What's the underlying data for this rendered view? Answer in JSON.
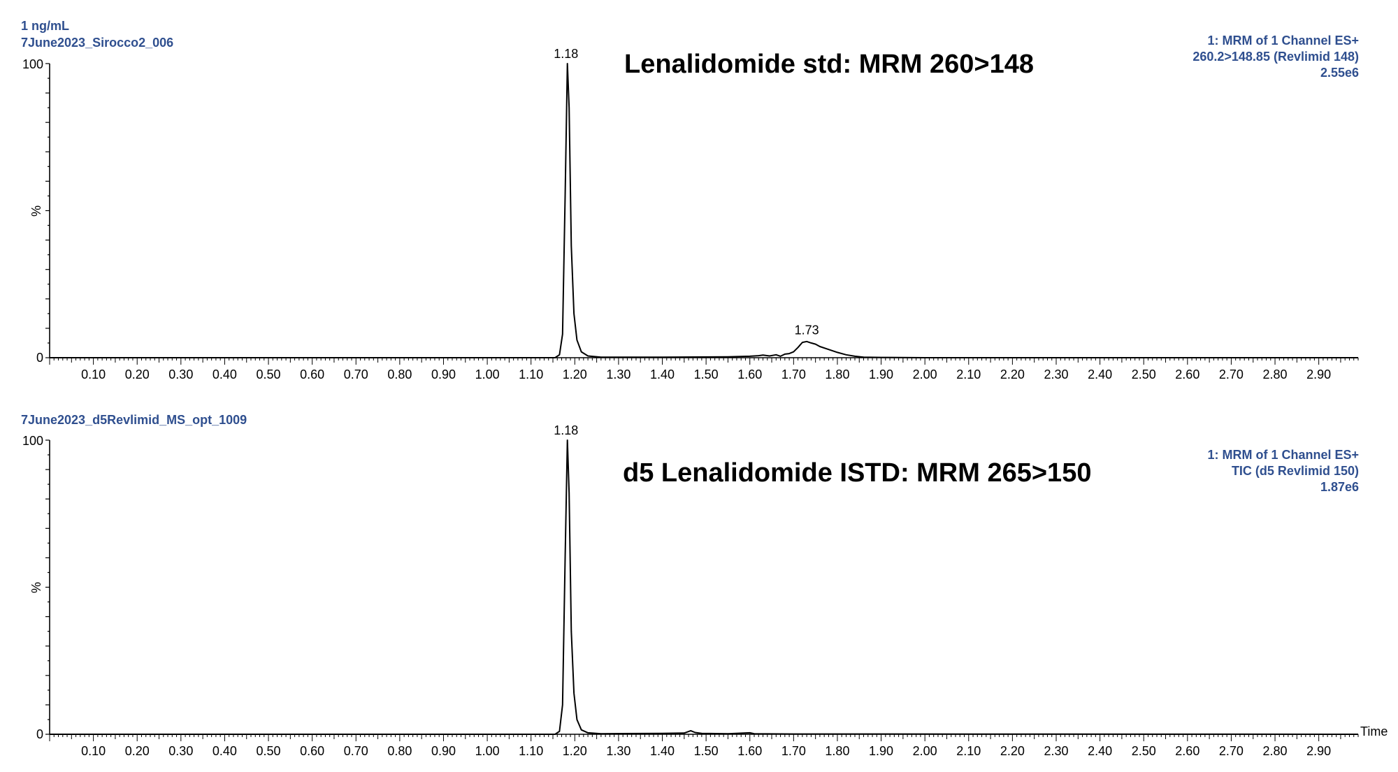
{
  "colors": {
    "header_text": "#2f4f8f",
    "trace": "#000000",
    "axis": "#000000",
    "background": "#ffffff"
  },
  "chart_data": [
    {
      "type": "line",
      "sample_name_lines": [
        "1 ng/mL",
        "7June2023_Sirocco2_006"
      ],
      "title": "Lenalidomide std: MRM 260>148",
      "info_lines": [
        "1: MRM of 1 Channel ES+",
        "260.2>148.85 (Revlimid 148)",
        "2.55e6"
      ],
      "ylabel": "%",
      "xlabel": "",
      "xlim": [
        0.0,
        2.99
      ],
      "ylim": [
        0,
        100
      ],
      "y_ticks": [
        "100",
        "0"
      ],
      "x_ticks": [
        "0.10",
        "0.20",
        "0.30",
        "0.40",
        "0.50",
        "0.60",
        "0.70",
        "0.80",
        "0.90",
        "1.00",
        "1.10",
        "1.20",
        "1.30",
        "1.40",
        "1.50",
        "1.60",
        "1.70",
        "1.80",
        "1.90",
        "2.00",
        "2.10",
        "2.20",
        "2.30",
        "2.40",
        "2.50",
        "2.60",
        "2.70",
        "2.80",
        "2.90"
      ],
      "peak_labels": [
        {
          "x": 1.18,
          "y": 100,
          "text": "1.18"
        },
        {
          "x": 1.73,
          "y": 6,
          "text": "1.73"
        }
      ],
      "series": [
        {
          "x": [
            0.0,
            1.1,
            1.155,
            1.165,
            1.172,
            1.178,
            1.183,
            1.187,
            1.192,
            1.198,
            1.205,
            1.215,
            1.23,
            1.26,
            1.4,
            1.55,
            1.6,
            1.62,
            1.63,
            1.645,
            1.66,
            1.67,
            1.68,
            1.69,
            1.7,
            1.71,
            1.72,
            1.73,
            1.74,
            1.75,
            1.76,
            1.78,
            1.8,
            1.82,
            1.84,
            1.86,
            1.9,
            2.0,
            2.99
          ],
          "y": [
            0,
            0,
            0,
            1,
            8,
            55,
            100,
            85,
            38,
            15,
            6,
            2,
            0.6,
            0.2,
            0.2,
            0.3,
            0.5,
            0.7,
            0.9,
            0.6,
            1.0,
            0.5,
            1.2,
            1.4,
            2.0,
            3.5,
            5.2,
            5.5,
            5.0,
            4.6,
            3.8,
            2.8,
            1.8,
            1.0,
            0.5,
            0.2,
            0.1,
            0,
            0
          ]
        }
      ]
    },
    {
      "type": "line",
      "sample_name_lines": [
        "7June2023_d5Revlimid_MS_opt_1009"
      ],
      "title": "d5 Lenalidomide ISTD: MRM 265>150",
      "info_lines": [
        "1: MRM of 1 Channel ES+",
        "TIC (d5 Revlimid 150)",
        "1.87e6"
      ],
      "ylabel": "%",
      "xlabel": "Time",
      "xlim": [
        0.0,
        2.99
      ],
      "ylim": [
        0,
        100
      ],
      "y_ticks": [
        "100",
        "0"
      ],
      "x_ticks": [
        "0.10",
        "0.20",
        "0.30",
        "0.40",
        "0.50",
        "0.60",
        "0.70",
        "0.80",
        "0.90",
        "1.00",
        "1.10",
        "1.20",
        "1.30",
        "1.40",
        "1.50",
        "1.60",
        "1.70",
        "1.80",
        "1.90",
        "2.00",
        "2.10",
        "2.20",
        "2.30",
        "2.40",
        "2.50",
        "2.60",
        "2.70",
        "2.80",
        "2.90"
      ],
      "peak_labels": [
        {
          "x": 1.18,
          "y": 100,
          "text": "1.18"
        }
      ],
      "series": [
        {
          "x": [
            0.0,
            1.1,
            1.155,
            1.165,
            1.172,
            1.178,
            1.183,
            1.187,
            1.192,
            1.198,
            1.205,
            1.215,
            1.23,
            1.26,
            1.4,
            1.45,
            1.465,
            1.475,
            1.49,
            1.55,
            1.6,
            1.61,
            1.7,
            2.99
          ],
          "y": [
            0,
            0,
            0,
            1,
            10,
            60,
            100,
            82,
            35,
            14,
            5,
            1.5,
            0.5,
            0.2,
            0.3,
            0.4,
            1.2,
            0.6,
            0.3,
            0.2,
            0.5,
            0.2,
            0.1,
            0
          ]
        }
      ]
    }
  ]
}
